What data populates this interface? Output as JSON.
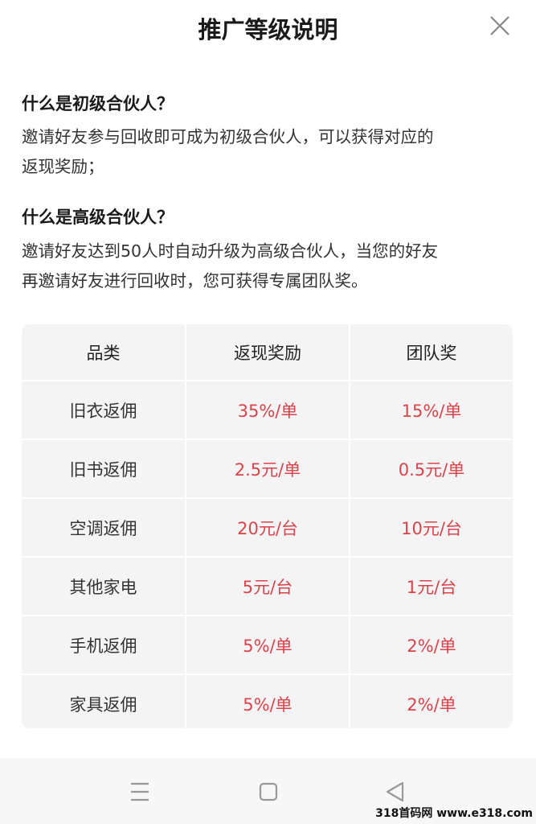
{
  "header": {
    "title": "推广等级说明",
    "close_icon": "close-icon"
  },
  "sections": [
    {
      "question": "什么是初级合伙人？",
      "lines": [
        "邀请好友参与回收即可成为初级合伙人，可以获得对应的",
        "返现奖励；"
      ]
    },
    {
      "question": "什么是高级合伙人？",
      "lines": [
        "邀请好友达到50人时自动升级为高级合伙人，当您的好友",
        "再邀请好友进行回收时，您可获得专属团队奖。"
      ]
    }
  ],
  "table": {
    "headers": [
      "品类",
      "返现奖励",
      "团队奖"
    ],
    "rows": [
      [
        "旧衣返佣",
        "35%/单",
        "15%/单"
      ],
      [
        "旧书返佣",
        "2.5元/单",
        "0.5元/单"
      ],
      [
        "空调返佣",
        "20元/台",
        "10元/台"
      ],
      [
        "其他家电",
        "5元/台",
        "1元/台"
      ],
      [
        "手机返佣",
        "5%/单",
        "2%/单"
      ],
      [
        "家具返佣",
        "5%/单",
        "2%/单"
      ]
    ]
  },
  "colors": {
    "accent": "#d9434b"
  },
  "nav": {
    "icons": [
      "menu-icon",
      "home-icon",
      "back-icon"
    ]
  },
  "watermark": "318首码网 www.e318.com"
}
